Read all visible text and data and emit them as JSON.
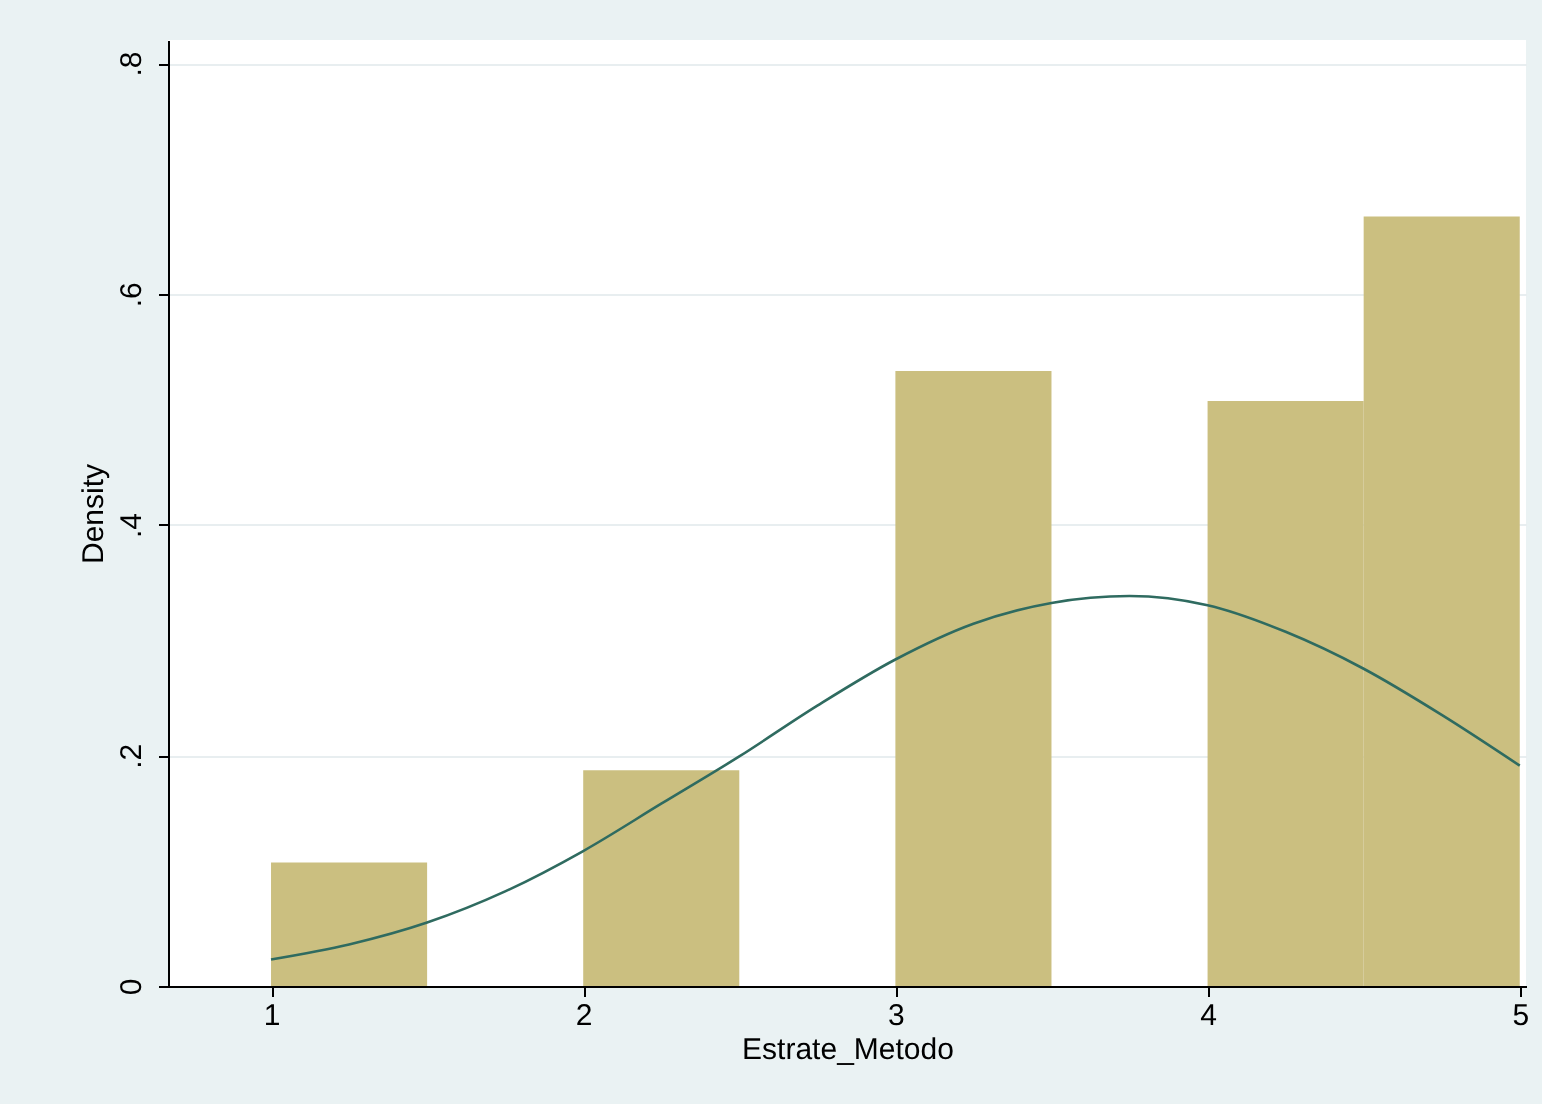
{
  "chart_data": {
    "type": "histogram",
    "xlabel": "Estrate_Metodo",
    "ylabel": "Density",
    "xlim": [
      0.67,
      5.02
    ],
    "ylim": [
      0,
      0.82
    ],
    "xticks": [
      1,
      2,
      3,
      4,
      5
    ],
    "yticks": [
      {
        "value": 0,
        "label": "0"
      },
      {
        "value": 0.2,
        "label": ".2"
      },
      {
        "value": 0.4,
        "label": ".4"
      },
      {
        "value": 0.6,
        "label": ".6"
      },
      {
        "value": 0.8,
        "label": ".8"
      }
    ],
    "grid": "y",
    "series": [
      {
        "color": "#cbbf80",
        "bins": [
          1,
          1.5,
          2,
          2.5,
          3,
          3.5,
          4,
          4.5,
          5
        ],
        "values": [
          0.107,
          0,
          0.187,
          0,
          0.533,
          0,
          0.507,
          0.667
        ]
      },
      {
        "type": "line",
        "color": "#2f6b60",
        "x": [
          1,
          1.25,
          1.5,
          1.75,
          2,
          2.25,
          2.5,
          2.75,
          3,
          3.25,
          3.5,
          3.75,
          4,
          4.25,
          4.5,
          4.75,
          5
        ],
        "values": [
          0.023,
          0.036,
          0.055,
          0.082,
          0.117,
          0.158,
          0.199,
          0.243,
          0.283,
          0.314,
          0.332,
          0.338,
          0.33,
          0.307,
          0.275,
          0.235,
          0.191
        ]
      }
    ]
  }
}
